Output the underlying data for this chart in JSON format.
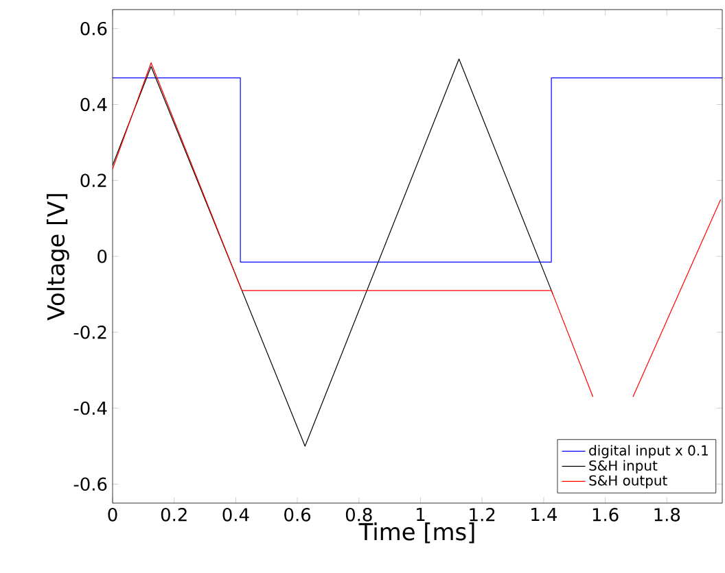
{
  "chart_data": {
    "type": "line",
    "xlabel": "Time [ms]",
    "ylabel": "Voltage [V]",
    "xlim": [
      0,
      1.98
    ],
    "ylim": [
      -0.65,
      0.65
    ],
    "xticks": [
      0,
      0.2,
      0.4,
      0.6,
      0.8,
      1,
      1.2,
      1.4,
      1.6,
      1.8
    ],
    "yticks": [
      -0.6,
      -0.4,
      -0.2,
      0,
      0.2,
      0.4,
      0.6
    ],
    "grid": false,
    "legend": "bottom right",
    "marker": "none",
    "line_style": "solid",
    "series": [
      {
        "name": "digital input x 0.1",
        "color": "#0000ff",
        "x": [
          0,
          0.415,
          0.415,
          1.425,
          1.425,
          1.98
        ],
        "values": [
          0.47,
          0.47,
          -0.015,
          -0.015,
          0.47,
          0.47
        ]
      },
      {
        "name": "S&H input",
        "color": "#000000",
        "x": [
          0,
          0.125,
          0.625,
          1.125,
          1.43
        ],
        "values": [
          0.24,
          0.5,
          -0.5,
          0.52,
          -0.1
        ]
      },
      {
        "name": "S&H output",
        "color": "#ff0000",
        "x": [
          0,
          0.125,
          0.42,
          1.425,
          1.43,
          1.56,
          1.625,
          1.69,
          1.975
        ],
        "values": [
          0.23,
          0.51,
          -0.09,
          -0.09,
          -0.1,
          -0.37,
          null,
          -0.37,
          0.15
        ]
      }
    ]
  }
}
